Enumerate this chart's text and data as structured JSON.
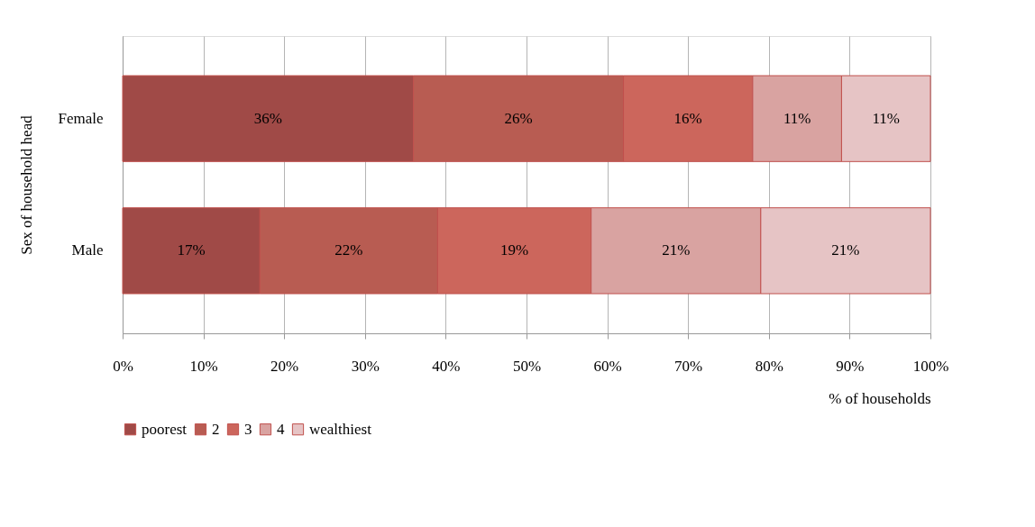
{
  "chart_data": {
    "type": "bar",
    "orientation": "horizontal",
    "stacked": true,
    "categories": [
      "Female",
      "Male"
    ],
    "xlabel": "% of households",
    "ylabel": "Sex of household head",
    "xlim": [
      0,
      100
    ],
    "xticks": [
      {
        "value": 0,
        "label": "0%"
      },
      {
        "value": 10,
        "label": "10%"
      },
      {
        "value": 20,
        "label": "20%"
      },
      {
        "value": 30,
        "label": "30%"
      },
      {
        "value": 40,
        "label": "40%"
      },
      {
        "value": 50,
        "label": "50%"
      },
      {
        "value": 60,
        "label": "60%"
      },
      {
        "value": 70,
        "label": "70%"
      },
      {
        "value": 80,
        "label": "80%"
      },
      {
        "value": 90,
        "label": "90%"
      },
      {
        "value": 100,
        "label": "100%"
      }
    ],
    "grid": "x",
    "legend": "bottom",
    "series": [
      {
        "name": "poorest",
        "color": "#a04a47",
        "values": [
          36,
          17
        ],
        "value_labels": [
          "36%",
          "17%"
        ]
      },
      {
        "name": "2",
        "color": "#b85c52",
        "values": [
          26,
          22
        ],
        "value_labels": [
          "26%",
          "22%"
        ]
      },
      {
        "name": "3",
        "color": "#cc665c",
        "values": [
          16,
          19
        ],
        "value_labels": [
          "16%",
          "19%"
        ]
      },
      {
        "name": "4",
        "color": "#d9a3a1",
        "values": [
          11,
          21
        ],
        "value_labels": [
          "11%",
          "21%"
        ]
      },
      {
        "name": "wealthiest",
        "color": "#e6c4c5",
        "values": [
          11,
          21
        ],
        "value_labels": [
          "11%",
          "21%"
        ]
      }
    ]
  }
}
